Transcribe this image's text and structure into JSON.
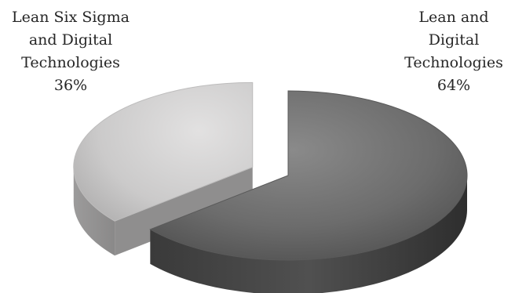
{
  "chart_data": {
    "type": "pie",
    "title": "",
    "slices": [
      {
        "label_lines": [
          "Lean Six Sigma",
          "and Digital",
          "Technologies"
        ],
        "label": "Lean Six Sigma and Digital Technologies",
        "value": 36,
        "value_label": "36%",
        "color": "#cfcdcd",
        "exploded": true
      },
      {
        "label_lines": [
          "Lean and",
          "Digital",
          "Technologies"
        ],
        "label": "Lean and Digital Technologies",
        "value": 64,
        "value_label": "64%",
        "color": "#6f6f6f",
        "exploded": false
      }
    ],
    "style": "3d-exploded-pie",
    "legend": "none"
  }
}
